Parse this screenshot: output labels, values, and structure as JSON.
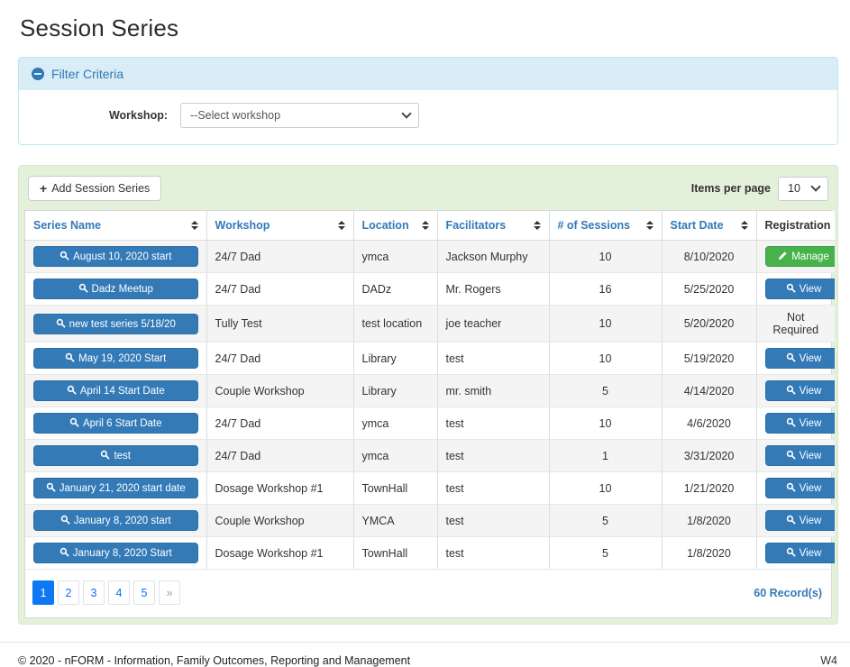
{
  "page": {
    "title": "Session Series"
  },
  "filter": {
    "title": "Filter Criteria",
    "collapse_icon": "minus-circle-icon",
    "workshop_label": "Workshop:",
    "workshop_selected": "--Select workshop"
  },
  "toolbar": {
    "add_button_label": "Add Session Series",
    "add_button_icon": "plus-icon",
    "items_per_page_label": "Items per page",
    "items_per_page_value": "10"
  },
  "table": {
    "columns": [
      {
        "label": "Series Name",
        "sortable": true
      },
      {
        "label": "Workshop",
        "sortable": true
      },
      {
        "label": "Location",
        "sortable": true
      },
      {
        "label": "Facilitators",
        "sortable": true
      },
      {
        "label": "# of Sessions",
        "sortable": true
      },
      {
        "label": "Start Date",
        "sortable": true
      },
      {
        "label": "Registration",
        "sortable": false
      }
    ],
    "rows": [
      {
        "series_name": "August 10, 2020 start",
        "workshop": "24/7 Dad",
        "location": "ymca",
        "facilitators": "Jackson Murphy",
        "sessions": "10",
        "start_date": "8/10/2020",
        "registration": {
          "type": "manage",
          "label": "Manage"
        }
      },
      {
        "series_name": "Dadz Meetup",
        "workshop": "24/7 Dad",
        "location": "DADz",
        "facilitators": "Mr. Rogers",
        "sessions": "16",
        "start_date": "5/25/2020",
        "registration": {
          "type": "view",
          "label": "View"
        }
      },
      {
        "series_name": "new test series 5/18/20",
        "workshop": "Tully Test",
        "location": "test location",
        "facilitators": "joe teacher",
        "sessions": "10",
        "start_date": "5/20/2020",
        "registration": {
          "type": "text",
          "label": "Not Required"
        }
      },
      {
        "series_name": "May 19, 2020 Start",
        "workshop": "24/7 Dad",
        "location": "Library",
        "facilitators": "test",
        "sessions": "10",
        "start_date": "5/19/2020",
        "registration": {
          "type": "view",
          "label": "View"
        }
      },
      {
        "series_name": "April 14 Start Date",
        "workshop": "Couple Workshop",
        "location": "Library",
        "facilitators": "mr. smith",
        "sessions": "5",
        "start_date": "4/14/2020",
        "registration": {
          "type": "view",
          "label": "View"
        }
      },
      {
        "series_name": "April 6 Start Date",
        "workshop": "24/7 Dad",
        "location": "ymca",
        "facilitators": "test",
        "sessions": "10",
        "start_date": "4/6/2020",
        "registration": {
          "type": "view",
          "label": "View"
        }
      },
      {
        "series_name": "test",
        "workshop": "24/7 Dad",
        "location": "ymca",
        "facilitators": "test",
        "sessions": "1",
        "start_date": "3/31/2020",
        "registration": {
          "type": "view",
          "label": "View"
        }
      },
      {
        "series_name": "January 21, 2020 start date",
        "workshop": "Dosage Workshop #1",
        "location": "TownHall",
        "facilitators": "test",
        "sessions": "10",
        "start_date": "1/21/2020",
        "registration": {
          "type": "view",
          "label": "View"
        }
      },
      {
        "series_name": "January 8, 2020 start",
        "workshop": "Couple Workshop",
        "location": "YMCA",
        "facilitators": "test",
        "sessions": "5",
        "start_date": "1/8/2020",
        "registration": {
          "type": "view",
          "label": "View"
        }
      },
      {
        "series_name": "January 8, 2020 Start",
        "workshop": "Dosage Workshop #1",
        "location": "TownHall",
        "facilitators": "test",
        "sessions": "5",
        "start_date": "1/8/2020",
        "registration": {
          "type": "view",
          "label": "View"
        }
      }
    ],
    "row_icons": {
      "series_icon": "magnifier-icon",
      "view_icon": "magnifier-icon",
      "manage_icon": "pencil-icon"
    }
  },
  "pagination": {
    "pages": [
      "1",
      "2",
      "3",
      "4",
      "5"
    ],
    "active_page": "1",
    "next_label": "»",
    "records_text": "60 Record(s)"
  },
  "footer": {
    "copyright": "© 2020 - nFORM - Information, Family Outcomes, Reporting and Management",
    "version": "W4"
  },
  "colors": {
    "accent_blue": "#337ab7",
    "panel_heading_bg": "#d9edf7",
    "panel_border": "#bce8f1",
    "wrapper_green_bg": "#e4f1da",
    "manage_green": "#47b24c",
    "pager_active_blue": "#0d78f2",
    "stripe_gray": "#f4f4f4"
  }
}
